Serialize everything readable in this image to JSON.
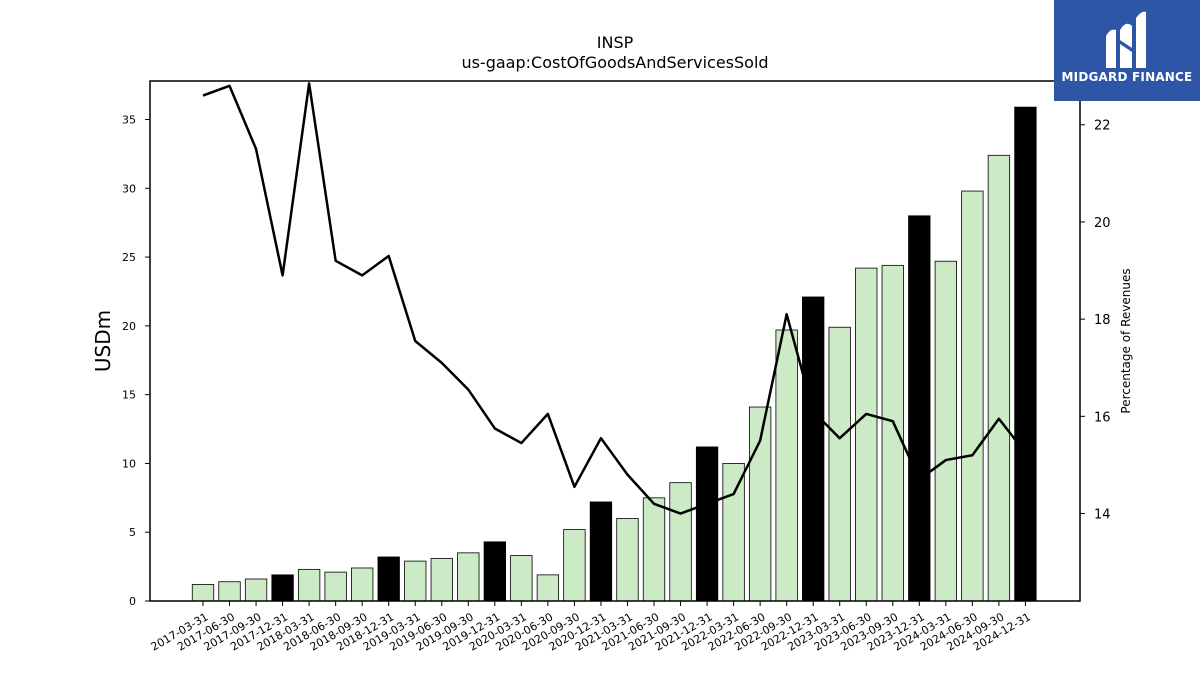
{
  "chart_data": {
    "type": "bar",
    "title": "INSP",
    "subtitle": "us-gaap:CostOfGoodsAndServicesSold",
    "ylabel": "USDm",
    "ylabel_right": "Percentage of Revenues",
    "ylim": [
      0,
      37.8
    ],
    "yticks": [
      0,
      5,
      10,
      15,
      20,
      25,
      30,
      35
    ],
    "ylim_right": [
      12.2,
      22.9
    ],
    "yticks_right": [
      14,
      16,
      18,
      20,
      22
    ],
    "categories": [
      "2017-03-31",
      "2017-06-30",
      "2017-09-30",
      "2017-12-31",
      "2018-03-31",
      "2018-06-30",
      "2018-09-30",
      "2018-12-31",
      "2019-03-31",
      "2019-06-30",
      "2019-09-30",
      "2019-12-31",
      "2020-03-31",
      "2020-06-30",
      "2020-09-30",
      "2020-12-31",
      "2021-03-31",
      "2021-06-30",
      "2021-09-30",
      "2021-12-31",
      "2022-03-31",
      "2022-06-30",
      "2022-09-30",
      "2022-12-31",
      "2023-03-31",
      "2023-06-30",
      "2023-09-30",
      "2023-12-31",
      "2024-03-31",
      "2024-06-30",
      "2024-09-30",
      "2024-12-31"
    ],
    "series": [
      {
        "type": "bar",
        "values": [
          1.2,
          1.4,
          1.6,
          1.9,
          2.3,
          2.1,
          2.4,
          3.2,
          2.9,
          3.1,
          3.5,
          4.3,
          3.3,
          1.9,
          5.2,
          7.2,
          6.0,
          7.5,
          8.6,
          11.2,
          10.0,
          14.1,
          19.7,
          22.1,
          19.9,
          24.2,
          24.4,
          28.0,
          24.7,
          29.8,
          32.4,
          35.9
        ],
        "highlight": [
          3,
          7,
          11,
          15,
          19,
          23,
          27,
          31
        ],
        "color": "#cdeac7",
        "highlight_color": "#000000"
      },
      {
        "type": "line",
        "axis": "right",
        "color": "#000000",
        "values": [
          22.6,
          22.8,
          21.5,
          18.9,
          22.85,
          19.2,
          18.9,
          19.3,
          17.55,
          17.1,
          16.55,
          15.75,
          15.45,
          16.05,
          14.55,
          15.55,
          14.8,
          14.2,
          14.0,
          14.2,
          14.4,
          15.5,
          18.1,
          16.1,
          15.55,
          16.05,
          15.9,
          14.7,
          15.1,
          15.2,
          15.95,
          15.25
        ]
      }
    ]
  },
  "logo": {
    "text": "MIDGARD FINANCE"
  }
}
